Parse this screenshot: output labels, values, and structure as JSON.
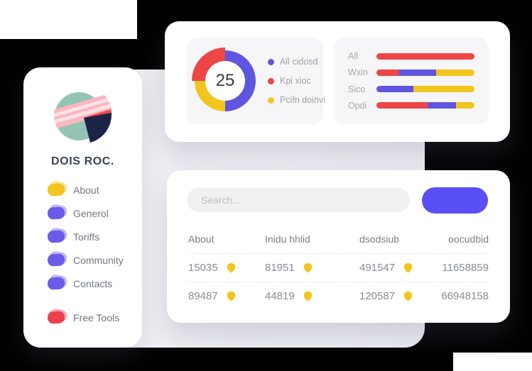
{
  "canvas": {
    "bg": "#000000",
    "surface_bg": "#f0f0f4"
  },
  "colors": {
    "red": "#EE4545",
    "blue": "#6055DF",
    "yellow": "#F2C51D",
    "accent": "#5A4FF5"
  },
  "sidebar": {
    "brand": "DOIS ROC.",
    "items": [
      {
        "label": "About",
        "color": "#F2C51D",
        "footer": false
      },
      {
        "label": "Generol",
        "color": "#6A5CE8",
        "footer": false
      },
      {
        "label": "Toriffs",
        "color": "#6A5CE8",
        "footer": false
      },
      {
        "label": "Community",
        "color": "#6A5CE8",
        "footer": false
      },
      {
        "label": "Contacts",
        "color": "#6A5CE8",
        "footer": false
      },
      {
        "label": "Free Tools",
        "color": "#EE4050",
        "footer": true
      }
    ]
  },
  "chart_data": [
    {
      "type": "pie",
      "subtype": "donut",
      "center_label": "25",
      "segments": [
        {
          "label": "All cidosd",
          "color": "#6055DF",
          "pct": 50,
          "emphasis": false
        },
        {
          "label": "Pcifn doinvi",
          "color": "#F2C51D",
          "pct": 25,
          "emphasis": false
        },
        {
          "label": "Kpi xioc",
          "color": "#EE4545",
          "pct": 25,
          "emphasis": true
        }
      ],
      "legend": [
        {
          "label": "All cidosd",
          "color": "#6055DF"
        },
        {
          "label": "Kpi xioc",
          "color": "#EE4545"
        },
        {
          "label": "Pcifn doinvi",
          "color": "#F2C51D"
        }
      ],
      "legend_position": "right"
    },
    {
      "type": "bar",
      "orientation": "horizontal",
      "stacked": true,
      "categories": [
        "All",
        "Wxin",
        "Sico",
        "Opdi"
      ],
      "rows": [
        {
          "label": "All",
          "segments": [
            {
              "color": "#EE4545",
              "pct": 100
            }
          ]
        },
        {
          "label": "Wxin",
          "segments": [
            {
              "color": "#EE4545",
              "pct": 23
            },
            {
              "color": "#6055DF",
              "pct": 38
            },
            {
              "color": "#F2C51D",
              "pct": 39
            }
          ]
        },
        {
          "label": "Sico",
          "segments": [
            {
              "color": "#6055DF",
              "pct": 38
            },
            {
              "color": "#F2C51D",
              "pct": 62
            }
          ]
        },
        {
          "label": "Opdi",
          "segments": [
            {
              "color": "#EE4545",
              "pct": 52
            },
            {
              "color": "#6055DF",
              "pct": 29
            },
            {
              "color": "#F2C51D",
              "pct": 19
            }
          ]
        }
      ]
    }
  ],
  "table_card": {
    "search_placeholder": "Search...",
    "button_label": "",
    "columns": [
      "About",
      "Inidu hhlid",
      "dsodsiub",
      "oocudbid"
    ],
    "badge_color": "#F2C51D",
    "rows": [
      [
        {
          "value": "15035",
          "badge": true
        },
        {
          "value": "81951",
          "badge": true
        },
        {
          "value": "491547",
          "badge": true
        },
        {
          "value": "11658859",
          "badge": false
        }
      ],
      [
        {
          "value": "89487",
          "badge": true
        },
        {
          "value": "44819",
          "badge": true
        },
        {
          "value": "120587",
          "badge": true
        },
        {
          "value": "66948158",
          "badge": false
        }
      ]
    ]
  }
}
